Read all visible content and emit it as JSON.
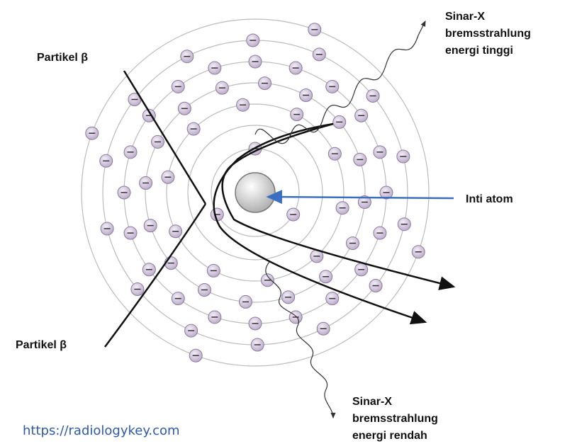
{
  "labels": {
    "xray_high": [
      "Sinar-X",
      "bremsstrahlung",
      "energi tinggi"
    ],
    "beta_top": "Partikel β",
    "beta_bottom": "Partikel β",
    "nucleus": "Inti atom",
    "xray_low": [
      "Sinar-X",
      "bremsstrahlung",
      "energi rendah"
    ]
  },
  "source": "https://radiologykey.com"
}
